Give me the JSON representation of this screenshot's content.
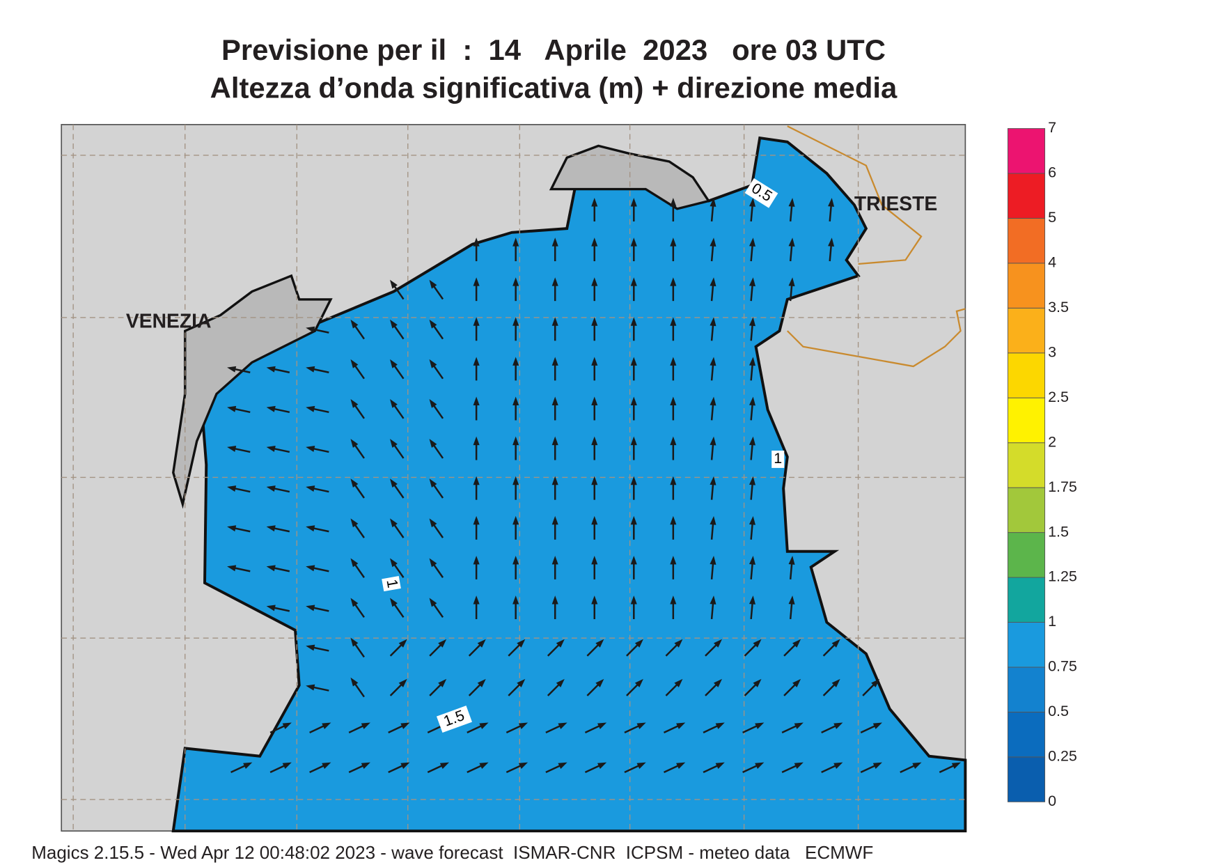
{
  "header": {
    "title_line1": "Previsione per il  :  14   Aprile  2023   ore 03 UTC",
    "title_line2": "Altezza d’onda significativa (m) + direzione media"
  },
  "map": {
    "places": [
      "VENEZIA",
      "TRIESTE"
    ],
    "contour_labels": [
      "0.5",
      "1",
      "1",
      "1.5"
    ]
  },
  "colorbar": {
    "levels": [
      0,
      0.25,
      0.5,
      0.75,
      1,
      1.25,
      1.5,
      1.75,
      2,
      2.5,
      3,
      3.5,
      4,
      5,
      6,
      7
    ],
    "colors": [
      "#0a5eae",
      "#0b6cbe",
      "#1382cf",
      "#1a9ade",
      "#12a69e",
      "#5cb54b",
      "#a2c83b",
      "#d4dc2a",
      "#fff200",
      "#fcd700",
      "#fbb01a",
      "#f7921e",
      "#f26d24",
      "#ed1c24",
      "#ec1470"
    ]
  },
  "footer": "Magics 2.15.5 - Wed Apr 12 00:48:02 2023 - wave forecast  ISMAR-CNR  ICPSM - meteo data   ECMWF"
}
